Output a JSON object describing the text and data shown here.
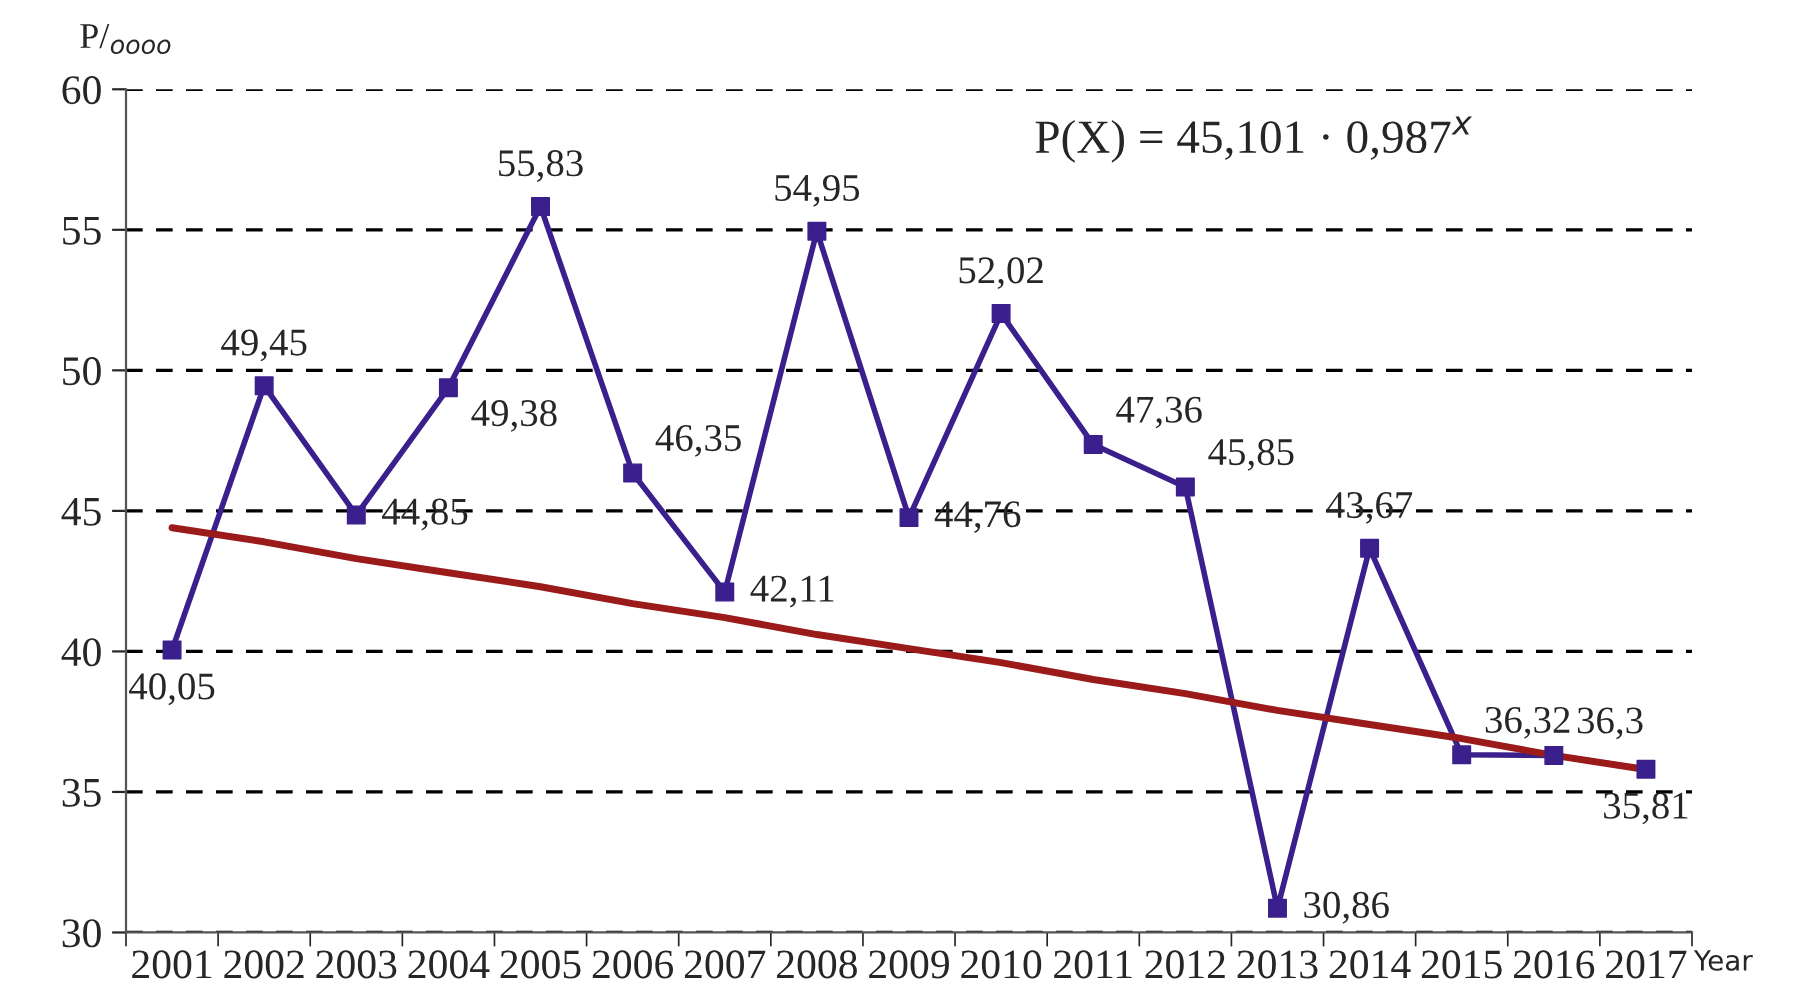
{
  "chart_data": {
    "type": "line",
    "ylabel": "P/$_{oooo}$",
    "xlabel": "Year",
    "categories": [
      "2001",
      "2002",
      "2003",
      "2004",
      "2005",
      "2006",
      "2007",
      "2008",
      "2009",
      "2010",
      "2011",
      "2012",
      "2013",
      "2014",
      "2015",
      "2016",
      "2017"
    ],
    "series": [
      {
        "color": "#3b1f8c",
        "marker": "square",
        "data_labels": true,
        "values": [
          40.05,
          49.45,
          44.85,
          49.38,
          55.83,
          46.35,
          42.11,
          54.95,
          44.76,
          52.02,
          47.36,
          45.85,
          30.86,
          43.67,
          36.32,
          36.3,
          35.81
        ],
        "value_labels": [
          "40,05",
          "49,45",
          "44,85",
          "49,38",
          "55,83",
          "46,35",
          "42,11",
          "54,95",
          "44,76",
          "52,02",
          "47,36",
          "45,85",
          "30,86",
          "43,67",
          "36,32",
          "36,3",
          "35,81"
        ]
      },
      {
        "color": "#9b1b1b",
        "marker": "none",
        "values": [
          44.4,
          43.9,
          43.3,
          42.8,
          42.3,
          41.7,
          41.2,
          40.6,
          40.1,
          39.6,
          39.0,
          38.5,
          37.9,
          37.4,
          36.9,
          36.3,
          35.8
        ]
      }
    ],
    "ylim": [
      30,
      60
    ],
    "yticks": [
      30,
      35,
      40,
      45,
      50,
      55,
      60
    ],
    "grid": "y",
    "line_style": "solid",
    "annotations": [
      "P(X) = 45,101 · 0,987$^{x}$"
    ]
  }
}
